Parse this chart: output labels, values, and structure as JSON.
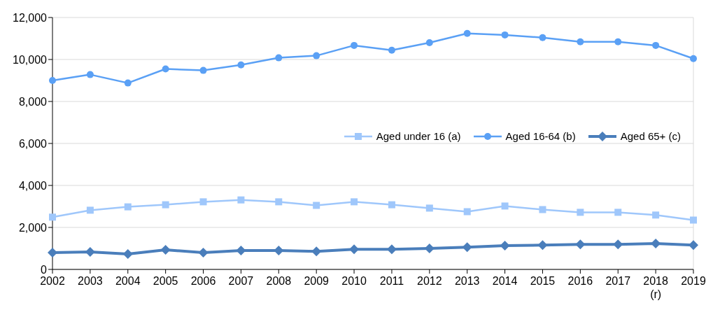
{
  "chart_data": {
    "type": "line",
    "categories": [
      "2002",
      "2003",
      "2004",
      "2005",
      "2006",
      "2007",
      "2008",
      "2009",
      "2010",
      "2011",
      "2012",
      "2013",
      "2014",
      "2015",
      "2016",
      "2017",
      "2018\n(r)",
      "2019"
    ],
    "series": [
      {
        "name": "Aged under 16 (a)",
        "color": "#9fc7fb",
        "marker": "square",
        "values": [
          2490,
          2820,
          2980,
          3080,
          3220,
          3310,
          3220,
          3050,
          3220,
          3080,
          2920,
          2750,
          3020,
          2850,
          2720,
          2720,
          2590,
          2350
        ]
      },
      {
        "name": "Aged 16-64 (b)",
        "color": "#5aa0f5",
        "marker": "circle",
        "values": [
          9000,
          9280,
          8880,
          9550,
          9480,
          9740,
          10080,
          10180,
          10670,
          10440,
          10800,
          11240,
          11170,
          11040,
          10840,
          10840,
          10670,
          10040
        ]
      },
      {
        "name": "Aged 65+ (c)",
        "color": "#4a7ebb",
        "marker": "diamond",
        "values": [
          800,
          830,
          730,
          930,
          800,
          900,
          900,
          860,
          960,
          960,
          1000,
          1060,
          1130,
          1160,
          1190,
          1190,
          1230,
          1160
        ]
      }
    ],
    "ylim": [
      0,
      12000
    ],
    "yticks": [
      {
        "value": 0,
        "label": "0"
      },
      {
        "value": 2000,
        "label": "2,000"
      },
      {
        "value": 4000,
        "label": "4,000"
      },
      {
        "value": 6000,
        "label": "6,000"
      },
      {
        "value": 8000,
        "label": "8,000"
      },
      {
        "value": 10000,
        "label": "10,000"
      },
      {
        "value": 12000,
        "label": "12,000"
      }
    ],
    "grid": "y",
    "legend": "right",
    "line_style": "solid"
  }
}
